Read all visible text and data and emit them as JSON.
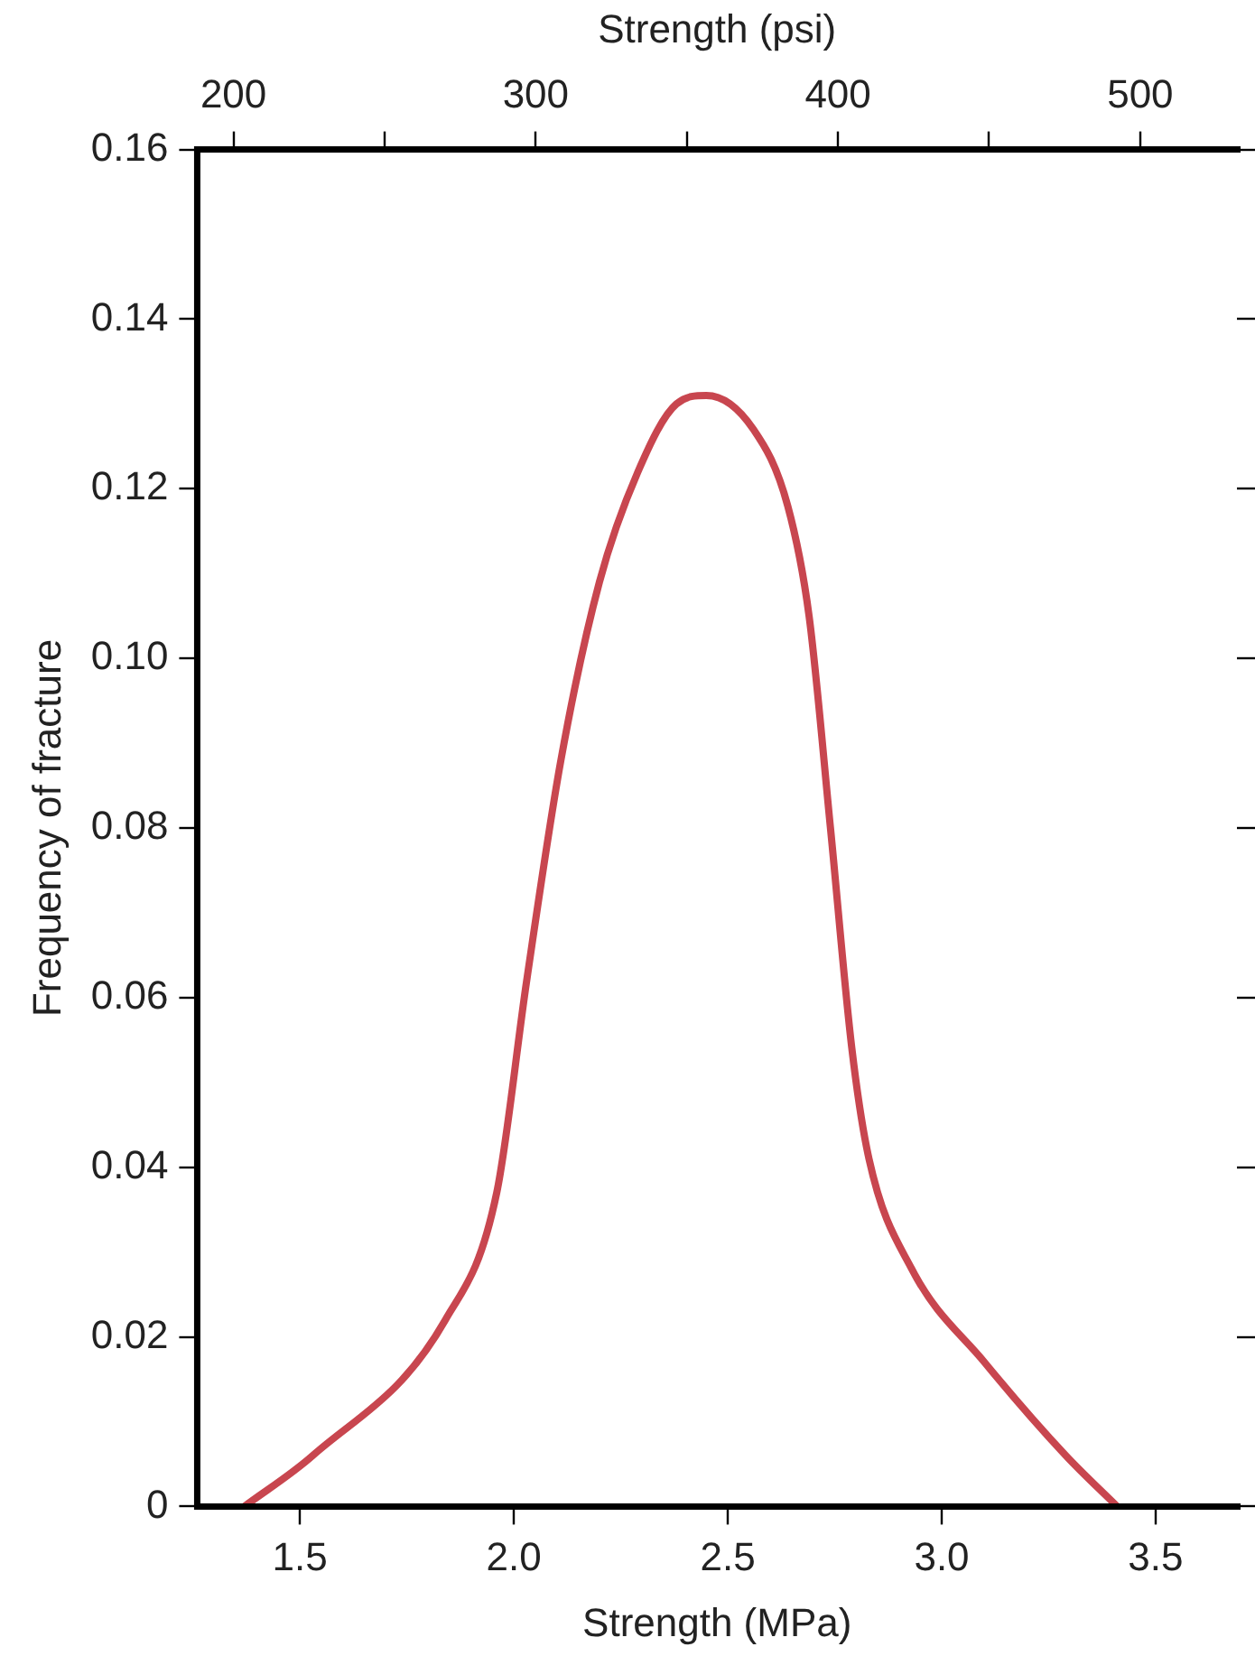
{
  "chart_data": {
    "type": "line",
    "xlabel": "Strength (MPa)",
    "ylabel": "Frequency of fracture",
    "x2label": "Strength (psi)",
    "x": [
      1.37,
      1.53,
      1.84,
      1.96,
      2.03,
      2.11,
      2.2,
      2.29,
      2.38,
      2.45,
      2.56,
      2.64,
      2.69,
      2.74,
      2.79,
      2.83,
      2.93,
      3.1,
      3.29,
      3.41
    ],
    "series": [
      {
        "color": "#c8464f",
        "values": [
          0,
          0.006,
          0.022,
          0.037,
          0.062,
          0.088,
          0.109,
          0.122,
          0.13,
          0.131,
          0.127,
          0.118,
          0.105,
          0.08,
          0.054,
          0.041,
          0.028,
          0.017,
          0.006,
          0
        ]
      }
    ],
    "xlim": [
      1.26,
      3.69
    ],
    "xticks": [
      {
        "value": 1.5,
        "label": "1.5"
      },
      {
        "value": 2,
        "label": "2.0"
      },
      {
        "value": 2.5,
        "label": "2.5"
      },
      {
        "value": 3,
        "label": "3.0"
      },
      {
        "value": 3.5,
        "label": "3.5"
      }
    ],
    "x2lim": [
      188,
      532
    ],
    "x2ticks": [
      200,
      {
        "value": 250,
        "label": null
      },
      300,
      {
        "value": 350,
        "label": null
      },
      400,
      {
        "value": 450,
        "label": null
      },
      500
    ],
    "ylim": [
      0,
      0.16
    ],
    "yticks": [
      0,
      {
        "value": 0.02,
        "label": "0.02"
      },
      {
        "value": 0.04,
        "label": "0.04"
      },
      {
        "value": 0.06,
        "label": "0.06"
      },
      {
        "value": 0.08,
        "label": "0.08"
      },
      {
        "value": 0.1,
        "label": "0.10"
      },
      {
        "value": 0.12,
        "label": "0.12"
      },
      {
        "value": 0.14,
        "label": "0.14"
      },
      {
        "value": 0.16,
        "label": "0.16"
      }
    ],
    "grid": false,
    "legend": false,
    "marker": "none",
    "line_style": "solid"
  }
}
